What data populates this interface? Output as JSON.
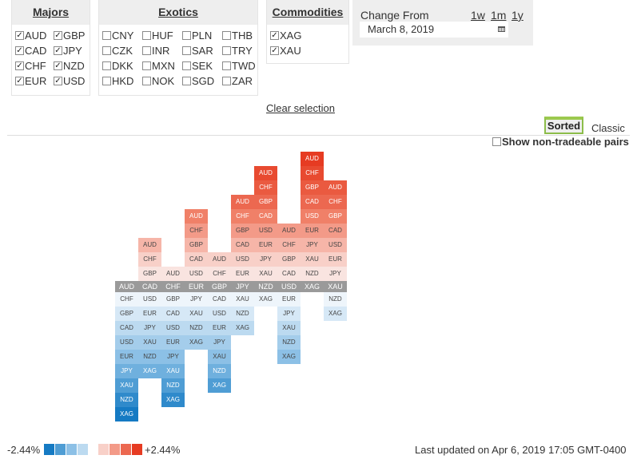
{
  "groups": {
    "majors": {
      "title": "Majors",
      "items": [
        {
          "label": "AUD",
          "checked": true
        },
        {
          "label": "GBP",
          "checked": true
        },
        {
          "label": "CAD",
          "checked": true
        },
        {
          "label": "JPY",
          "checked": true
        },
        {
          "label": "CHF",
          "checked": true
        },
        {
          "label": "NZD",
          "checked": true
        },
        {
          "label": "EUR",
          "checked": true
        },
        {
          "label": "USD",
          "checked": true
        }
      ]
    },
    "exotics": {
      "title": "Exotics",
      "items": [
        {
          "label": "CNY",
          "checked": false
        },
        {
          "label": "HUF",
          "checked": false
        },
        {
          "label": "PLN",
          "checked": false
        },
        {
          "label": "THB",
          "checked": false
        },
        {
          "label": "CZK",
          "checked": false
        },
        {
          "label": "INR",
          "checked": false
        },
        {
          "label": "SAR",
          "checked": false
        },
        {
          "label": "TRY",
          "checked": false
        },
        {
          "label": "DKK",
          "checked": false
        },
        {
          "label": "MXN",
          "checked": false
        },
        {
          "label": "SEK",
          "checked": false
        },
        {
          "label": "TWD",
          "checked": false
        },
        {
          "label": "HKD",
          "checked": false
        },
        {
          "label": "NOK",
          "checked": false
        },
        {
          "label": "SGD",
          "checked": false
        },
        {
          "label": "ZAR",
          "checked": false
        }
      ]
    },
    "commodities": {
      "title": "Commodities",
      "items": [
        {
          "label": "XAG",
          "checked": true
        },
        {
          "label": "XAU",
          "checked": true
        }
      ]
    }
  },
  "change_from": {
    "label": "Change From",
    "ranges": [
      "1w",
      "1m",
      "1y"
    ],
    "date": "March 8, 2019"
  },
  "clear_selection": "Clear selection",
  "view_toggle": {
    "sorted": "Sorted",
    "classic": "Classic",
    "active": "sorted"
  },
  "show_nontradeable": {
    "label": "Show non-tradeable pairs",
    "checked": false
  },
  "heatmap": {
    "axis": [
      "AUD",
      "CAD",
      "CHF",
      "EUR",
      "GBP",
      "JPY",
      "NZD",
      "USD",
      "XAG",
      "XAU"
    ],
    "up": [
      [],
      [
        "GBP",
        "CHF",
        "AUD"
      ],
      [
        "AUD"
      ],
      [
        "USD",
        "CAD",
        "GBP",
        "CHF",
        "AUD"
      ],
      [
        "CHF",
        "AUD"
      ],
      [
        "EUR",
        "USD",
        "CAD",
        "GBP",
        "CHF",
        "AUD"
      ],
      [
        "XAU",
        "JPY",
        "EUR",
        "USD",
        "CAD",
        "GBP",
        "CHF",
        "AUD"
      ],
      [
        "CAD",
        "GBP",
        "CHF",
        "AUD"
      ],
      [
        "NZD",
        "XAU",
        "JPY",
        "EUR",
        "USD",
        "CAD",
        "GBP",
        "CHF",
        "AUD"
      ],
      [
        "JPY",
        "EUR",
        "USD",
        "CAD",
        "GBP",
        "CHF",
        "AUD"
      ]
    ],
    "down": [
      [
        "CHF",
        "GBP",
        "CAD",
        "USD",
        "EUR",
        "JPY",
        "XAU",
        "NZD",
        "XAG"
      ],
      [
        "USD",
        "EUR",
        "JPY",
        "XAU",
        "NZD",
        "XAG"
      ],
      [
        "GBP",
        "CAD",
        "USD",
        "EUR",
        "JPY",
        "XAU",
        "NZD",
        "XAG"
      ],
      [
        "JPY",
        "XAU",
        "NZD",
        "XAG"
      ],
      [
        "CAD",
        "USD",
        "EUR",
        "JPY",
        "XAU",
        "NZD",
        "XAG"
      ],
      [
        "XAU",
        "NZD",
        "XAG"
      ],
      [
        "XAG"
      ],
      [
        "EUR",
        "JPY",
        "XAU",
        "NZD",
        "XAG"
      ],
      [],
      [
        "NZD",
        "XAG"
      ]
    ],
    "colors_up": [
      "#f9e4e0",
      "#f8d0c8",
      "#f6b5a8",
      "#f39a88",
      "#f08068",
      "#ec6850",
      "#ea5a40",
      "#e84a30",
      "#e63b22"
    ],
    "colors_down": [
      "#eef5fb",
      "#d6e8f6",
      "#bcdaf0",
      "#a4cdeb",
      "#8cc0e6",
      "#6fb0de",
      "#4f9dd4",
      "#2f8acb",
      "#157ac3"
    ]
  },
  "legend": {
    "min_label": "-2.44%",
    "max_label": "+2.44%",
    "blue": [
      "#157ac3",
      "#4f9dd4",
      "#8cc0e6",
      "#bcdaf0"
    ],
    "red": [
      "#f8d0c8",
      "#f39a88",
      "#ec6850",
      "#e63b22"
    ]
  },
  "last_updated": "Last updated on Apr 6, 2019 17:05 GMT-0400"
}
